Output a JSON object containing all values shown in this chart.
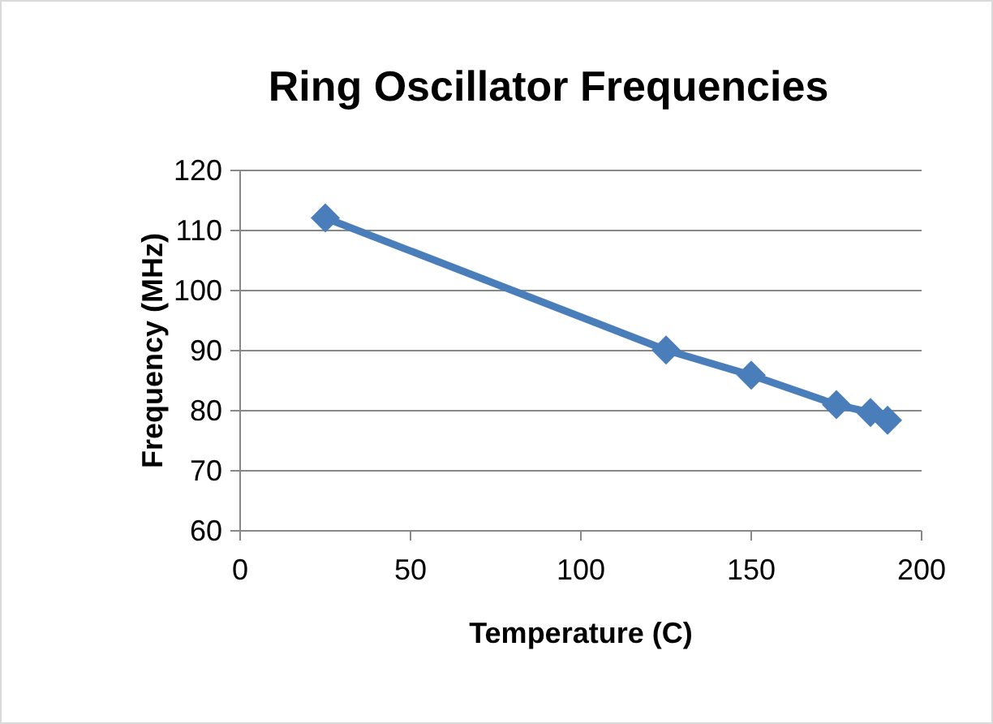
{
  "chart_data": {
    "type": "line",
    "title": "Ring Oscillator Frequencies",
    "xlabel": "Temperature (C)",
    "ylabel": "Frequency (MHz)",
    "x": [
      25,
      125,
      150,
      175,
      185,
      190
    ],
    "series": [
      {
        "color": "#4a7ebb",
        "values": [
          112.1,
          90.1,
          85.9,
          81,
          79.7,
          78.4
        ]
      }
    ],
    "xlim": [
      0,
      200
    ],
    "xticks": [
      0,
      50,
      100,
      150,
      200
    ],
    "ylim": [
      60,
      120
    ],
    "yticks": [
      60,
      70,
      80,
      90,
      100,
      110,
      120
    ],
    "grid": "y",
    "marker": "diamond",
    "line_style": "solid"
  }
}
